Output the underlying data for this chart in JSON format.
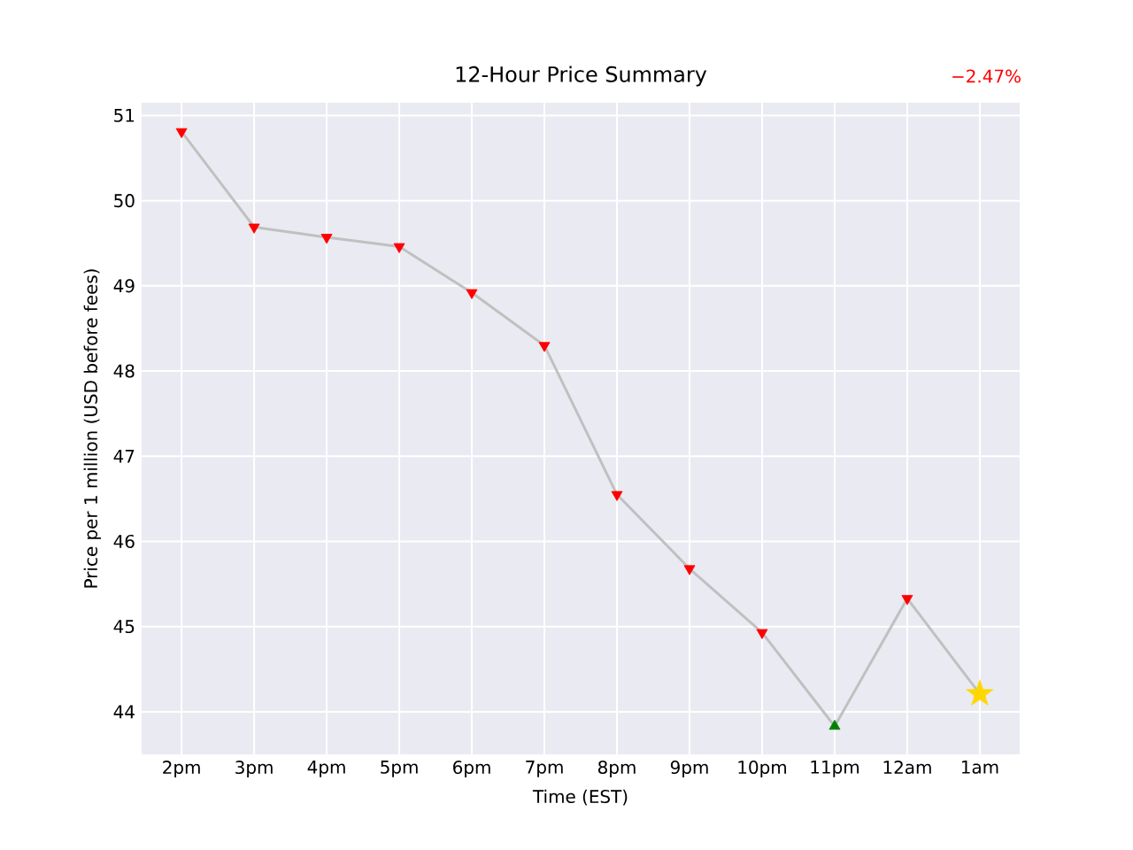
{
  "chart_data": {
    "type": "line",
    "title": "12-Hour Price Summary",
    "xlabel": "Time (EST)",
    "ylabel": "Price per 1 million (USD before fees)",
    "categories": [
      "2pm",
      "3pm",
      "4pm",
      "5pm",
      "6pm",
      "7pm",
      "8pm",
      "9pm",
      "10pm",
      "11pm",
      "12am",
      "1am"
    ],
    "series": [
      {
        "color": "#c0c0c0",
        "marker": "none",
        "values": [
          50.81,
          49.69,
          49.57,
          49.46,
          48.92,
          48.3,
          46.55,
          45.68,
          44.93,
          43.83,
          45.33,
          44.21
        ]
      },
      {
        "type": "scatter",
        "color": "#ff0000",
        "marker": "triangle_down",
        "values": [
          50.81,
          49.69,
          49.57,
          49.46,
          48.92,
          48.3,
          46.55,
          45.68,
          44.93,
          null,
          45.33,
          null
        ]
      },
      {
        "type": "scatter",
        "color": "#008000",
        "marker": "triangle",
        "values": [
          null,
          null,
          null,
          null,
          null,
          null,
          null,
          null,
          null,
          43.83,
          null,
          null
        ]
      },
      {
        "type": "scatter",
        "color": "#ffd700",
        "marker": "star",
        "values": [
          null,
          null,
          null,
          null,
          null,
          null,
          null,
          null,
          null,
          null,
          null,
          44.21
        ]
      }
    ],
    "ylim": [
      43.5,
      51.15
    ],
    "yticks": [
      44,
      45,
      46,
      47,
      48,
      49,
      50,
      51
    ],
    "grid": true,
    "annotations": [
      "−2.47%"
    ]
  }
}
